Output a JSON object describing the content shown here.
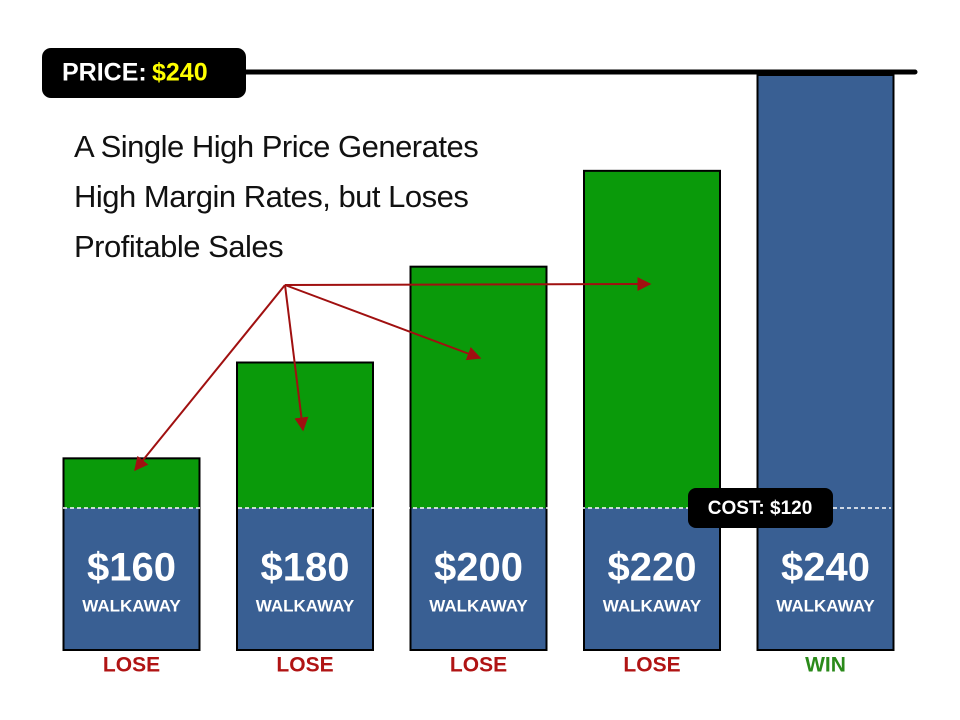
{
  "chart_data": {
    "type": "bar",
    "title": "A Single High Price Generates High Margin Rates, but Loses Profitable Sales",
    "price_label": "PRICE:",
    "price": 240,
    "price_value_label": "$240",
    "cost_label": "COST: $120",
    "categories": [
      "WALKAWAY",
      "WALKAWAY",
      "WALKAWAY",
      "WALKAWAY",
      "WALKAWAY"
    ],
    "values": [
      160,
      180,
      200,
      220,
      240
    ],
    "value_labels": [
      "$160",
      "$180",
      "$200",
      "$220",
      "$240"
    ],
    "colors": [
      "#0a9a0a",
      "#0a9a0a",
      "#0a9a0a",
      "#0a9a0a",
      "#395f93"
    ],
    "outcomes": [
      "LOSE",
      "LOSE",
      "LOSE",
      "LOSE",
      "WIN"
    ],
    "outcome_colors": [
      "#b01414",
      "#b01414",
      "#b01414",
      "#b01414",
      "#2a8a1a"
    ],
    "ylim": [
      120,
      240
    ]
  }
}
